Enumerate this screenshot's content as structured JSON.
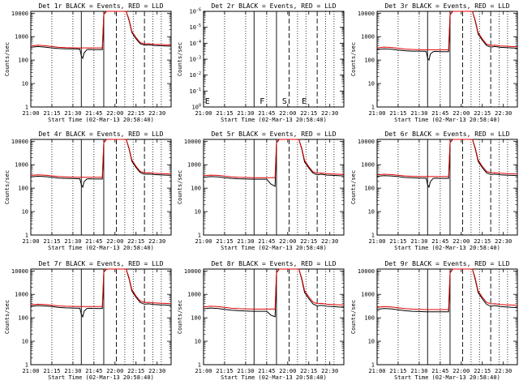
{
  "chart_data": {
    "type": "line",
    "figure": "RHESSI detector count rates, 3x3 grid",
    "legend_note": "BLACK = Events, RED = LLD",
    "x_axis": {
      "label": "Start Time (02-Mar-13 20:58:40)",
      "tick_labels": [
        "21:00",
        "21:15",
        "21:30",
        "21:45",
        "22:00",
        "22:15",
        "22:30"
      ],
      "range_minutes_after_21_00": [
        0,
        100
      ]
    },
    "y_axis": {
      "label": "Counts/sec",
      "scale": "log",
      "range": [
        1,
        12000
      ],
      "tick_labels": [
        "1",
        "10",
        "100",
        "1000",
        "10000"
      ]
    },
    "event_markers": {
      "solid_lines_minutes": [
        36,
        52
      ],
      "dashed_lines_minutes": [
        61,
        81
      ],
      "dotted_lines_minutes": [
        15,
        30,
        45,
        67,
        73,
        87,
        93
      ]
    },
    "x_minutes": [
      0,
      5,
      10,
      15,
      20,
      25,
      30,
      35,
      36,
      37,
      38,
      40,
      42,
      45,
      48,
      51,
      51.5,
      52,
      54,
      58,
      62,
      66,
      68,
      70,
      72,
      75,
      78,
      81,
      84,
      88,
      92,
      96,
      100
    ],
    "panels": [
      {
        "title": "Det 1r BLACK = Events, RED = LLD",
        "series": [
          {
            "name": "Events",
            "color": "#000000",
            "values": [
              350,
              380,
              360,
              330,
              310,
              300,
              300,
              295,
              150,
              120,
              200,
              280,
              285,
              280,
              280,
              280,
              1500,
              9000,
              12000,
              12000,
              12000,
              12000,
              12000,
              5000,
              1500,
              800,
              500,
              430,
              450,
              420,
              410,
              400,
              390
            ]
          },
          {
            "name": "LLD",
            "color": "#e00000",
            "values": [
              400,
              430,
              410,
              380,
              350,
              340,
              335,
              330,
              330,
              330,
              330,
              330,
              330,
              330,
              330,
              330,
              1800,
              9500,
              12000,
              12000,
              12000,
              12000,
              12000,
              5500,
              1700,
              900,
              560,
              490,
              500,
              470,
              460,
              450,
              440
            ]
          }
        ]
      },
      {
        "title": "Det 2r BLACK = Events, RED = LLD",
        "y_range": [
          1,
          1e-06
        ],
        "y_tick_labels": [
          "10^0",
          "10^-1",
          "10^-2",
          "10^-3",
          "10^-4",
          "10^-5",
          "10^-6"
        ],
        "flags": [
          {
            "text": "E",
            "x_minutes": 1
          },
          {
            "text": "F",
            "x_minutes": 40
          },
          {
            "text": "S",
            "x_minutes": 56
          },
          {
            "text": "E",
            "x_minutes": 70
          }
        ],
        "series": []
      },
      {
        "title": "Det 3r BLACK = Events, RED = LLD",
        "series": [
          {
            "name": "Events",
            "color": "#000000",
            "values": [
              280,
              300,
              290,
              270,
              250,
              240,
              240,
              235,
              120,
              100,
              180,
              230,
              235,
              230,
              230,
              230,
              1300,
              8500,
              12000,
              12000,
              12000,
              12000,
              12000,
              4500,
              1300,
              700,
              420,
              360,
              380,
              350,
              340,
              330,
              320
            ]
          },
          {
            "name": "LLD",
            "color": "#e00000",
            "values": [
              330,
              360,
              345,
              320,
              295,
              285,
              280,
              275,
              275,
              275,
              275,
              275,
              275,
              275,
              275,
              275,
              1600,
              9000,
              12000,
              12000,
              12000,
              12000,
              12000,
              5000,
              1500,
              800,
              480,
              420,
              430,
              400,
              390,
              380,
              370
            ]
          }
        ]
      },
      {
        "title": "Det 4r BLACK = Events, RED = LLD",
        "series": [
          {
            "name": "Events",
            "color": "#000000",
            "values": [
              300,
              320,
              310,
              290,
              270,
              260,
              255,
              250,
              140,
              110,
              190,
              245,
              250,
              245,
              245,
              245,
              1400,
              8800,
              12000,
              12000,
              12000,
              12000,
              12000,
              4800,
              1400,
              750,
              460,
              390,
              400,
              380,
              370,
              360,
              350
            ]
          },
          {
            "name": "LLD",
            "color": "#e00000",
            "values": [
              350,
              370,
              360,
              335,
              310,
              300,
              295,
              290,
              290,
              290,
              290,
              290,
              290,
              290,
              290,
              290,
              1700,
              9300,
              12000,
              12000,
              12000,
              12000,
              12000,
              5200,
              1600,
              850,
              520,
              450,
              460,
              430,
              420,
              410,
              400
            ]
          }
        ]
      },
      {
        "title": "Det 5r BLACK = Events, RED = LLD",
        "series": [
          {
            "name": "Events",
            "color": "#000000",
            "values": [
              290,
              310,
              300,
              280,
              260,
              250,
              245,
              240,
              240,
              240,
              240,
              240,
              240,
              240,
              150,
              120,
              1300,
              8600,
              12000,
              12000,
              12000,
              12000,
              12000,
              4600,
              1300,
              720,
              440,
              370,
              390,
              360,
              350,
              340,
              330
            ]
          },
          {
            "name": "LLD",
            "color": "#e00000",
            "values": [
              340,
              360,
              350,
              325,
              300,
              290,
              285,
              280,
              280,
              280,
              280,
              280,
              280,
              280,
              280,
              280,
              1600,
              9100,
              12000,
              12000,
              12000,
              12000,
              12000,
              5100,
              1550,
              820,
              500,
              430,
              440,
              410,
              400,
              390,
              380
            ]
          }
        ]
      },
      {
        "title": "Det 6r BLACK = Events, RED = LLD",
        "series": [
          {
            "name": "Events",
            "color": "#000000",
            "values": [
              320,
              340,
              330,
              310,
              285,
              275,
              270,
              265,
              140,
              110,
              190,
              260,
              265,
              260,
              260,
              260,
              1400,
              8800,
              12000,
              12000,
              12000,
              12000,
              12000,
              4700,
              1400,
              740,
              450,
              380,
              395,
              370,
              360,
              350,
              340
            ]
          },
          {
            "name": "LLD",
            "color": "#e00000",
            "values": [
              370,
              390,
              380,
              355,
              330,
              320,
              315,
              310,
              310,
              310,
              310,
              310,
              310,
              310,
              310,
              310,
              1700,
              9300,
              12000,
              12000,
              12000,
              12000,
              12000,
              5200,
              1600,
              850,
              520,
              450,
              460,
              430,
              420,
              410,
              400
            ]
          }
        ]
      },
      {
        "title": "Det 7r BLACK = Events, RED = LLD",
        "series": [
          {
            "name": "Events",
            "color": "#000000",
            "values": [
              310,
              330,
              320,
              300,
              275,
              265,
              260,
              255,
              140,
              110,
              190,
              250,
              255,
              250,
              250,
              250,
              1400,
              8800,
              12000,
              12000,
              12000,
              12000,
              12000,
              4700,
              1400,
              740,
              450,
              380,
              395,
              370,
              360,
              350,
              340
            ]
          },
          {
            "name": "LLD",
            "color": "#e00000",
            "values": [
              360,
              380,
              370,
              345,
              320,
              310,
              305,
              300,
              300,
              300,
              300,
              300,
              300,
              300,
              300,
              300,
              1700,
              9300,
              12000,
              12000,
              12000,
              12000,
              12000,
              5200,
              1600,
              850,
              520,
              450,
              460,
              430,
              420,
              410,
              400
            ]
          }
        ]
      },
      {
        "title": "Det 8r BLACK = Events, RED = LLD",
        "series": [
          {
            "name": "Events",
            "color": "#000000",
            "values": [
              240,
              260,
              250,
              230,
              210,
              200,
              195,
              190,
              190,
              190,
              190,
              190,
              190,
              190,
              130,
              110,
              1200,
              8300,
              12000,
              12000,
              12000,
              12000,
              12000,
              4300,
              1200,
              650,
              390,
              320,
              340,
              310,
              300,
              290,
              280
            ]
          },
          {
            "name": "LLD",
            "color": "#e00000",
            "values": [
              290,
              310,
              300,
              280,
              255,
              245,
              240,
              235,
              235,
              235,
              235,
              235,
              235,
              235,
              235,
              235,
              1500,
              8900,
              12000,
              12000,
              12000,
              12000,
              12000,
              4900,
              1450,
              780,
              470,
              400,
              410,
              380,
              370,
              360,
              350
            ]
          }
        ]
      },
      {
        "title": "Det 9r BLACK = Events, RED = LLD",
        "series": [
          {
            "name": "Events",
            "color": "#000000",
            "values": [
              230,
              250,
              240,
              220,
              200,
              190,
              185,
              180,
              180,
              180,
              180,
              180,
              180,
              180,
              180,
              180,
              1200,
              8200,
              12000,
              12000,
              12000,
              12000,
              12000,
              4200,
              1200,
              640,
              380,
              310,
              330,
              300,
              290,
              280,
              270
            ]
          },
          {
            "name": "LLD",
            "color": "#e00000",
            "values": [
              280,
              300,
              290,
              270,
              245,
              235,
              230,
              225,
              225,
              225,
              225,
              225,
              225,
              225,
              225,
              225,
              1500,
              8800,
              12000,
              12000,
              12000,
              12000,
              12000,
              4800,
              1400,
              760,
              460,
              390,
              400,
              370,
              360,
              350,
              340
            ]
          }
        ]
      }
    ]
  }
}
